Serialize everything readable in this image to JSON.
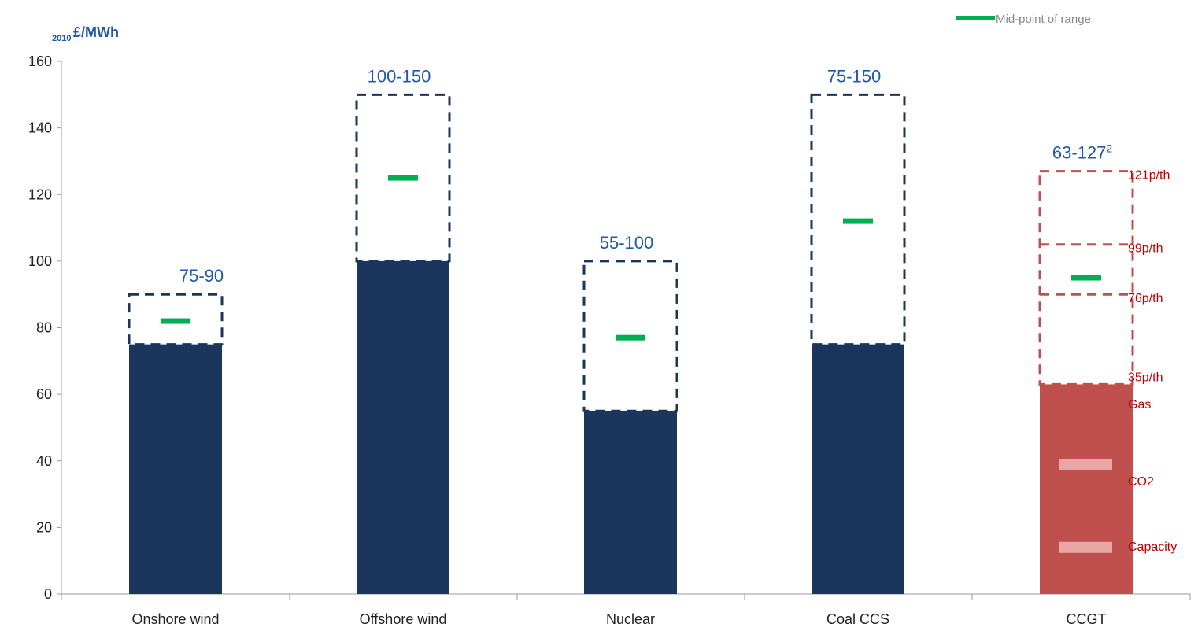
{
  "chart_data": {
    "type": "bar",
    "ylabel_prefix": "2010",
    "ylabel": "£/MWh",
    "ylim": [
      0,
      160
    ],
    "yticks": [
      0,
      20,
      40,
      60,
      80,
      100,
      120,
      140,
      160
    ],
    "grid": false,
    "legend": {
      "label": "Mid-point of range",
      "position": "top-right"
    },
    "colors": {
      "solid": "#1a365d",
      "range_outline": "#1a365d",
      "ccgt_solid": "#c0504d",
      "ccgt_outline": "#c0504d",
      "midpoint": "#00b050",
      "range_label": "#1f5aa6",
      "annotation": "#c00000"
    },
    "categories": [
      "Onshore wind",
      "Offshore wind",
      "Nuclear",
      "Coal CCS",
      "CCGT"
    ],
    "bars": [
      {
        "category": "Onshore wind",
        "low": 75,
        "high": 90,
        "mid": 82,
        "label": "75-90"
      },
      {
        "category": "Offshore wind",
        "low": 100,
        "high": 150,
        "mid": 125,
        "label": "100-150"
      },
      {
        "category": "Nuclear",
        "low": 55,
        "high": 100,
        "mid": 77,
        "label": "55-100"
      },
      {
        "category": "Coal CCS",
        "low": 75,
        "high": 150,
        "mid": 112,
        "label": "75-150"
      },
      {
        "category": "CCGT",
        "low": 63,
        "high": 127,
        "mid": 95,
        "label": "63-127",
        "label_sup": "2"
      }
    ],
    "ccgt": {
      "gas_price_levels": [
        {
          "label": "121p/th",
          "value": 127
        },
        {
          "label": "99p/th",
          "value": 105
        },
        {
          "label": "76p/th",
          "value": 90
        },
        {
          "label": "35p/th",
          "value": 63
        }
      ],
      "components": [
        {
          "label": "Gas",
          "marker_value": null
        },
        {
          "label": "CO2",
          "marker_value": 39
        },
        {
          "label": "Capacity",
          "marker_value": 14
        }
      ]
    }
  }
}
